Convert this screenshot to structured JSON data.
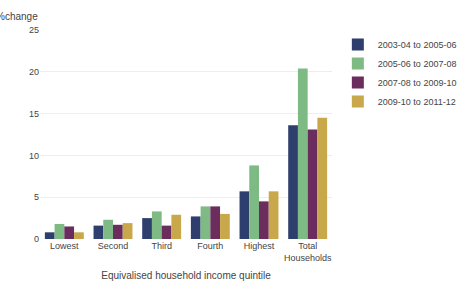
{
  "chart_data": {
    "type": "bar",
    "categories": [
      "Lowest",
      "Second",
      "Third",
      "Fourth",
      "Highest",
      "Total\nHouseholds"
    ],
    "series": [
      {
        "name": "2003-04 to 2005-06",
        "color": "#2e3f6e",
        "values": [
          0.8,
          1.6,
          2.5,
          2.7,
          5.7,
          13.6
        ]
      },
      {
        "name": "2005-06 to 2007-08",
        "color": "#7dba84",
        "values": [
          1.8,
          2.3,
          3.3,
          3.9,
          8.8,
          20.4
        ]
      },
      {
        "name": "2007-08 to 2009-10",
        "color": "#6b2d5e",
        "values": [
          1.5,
          1.7,
          1.6,
          3.9,
          4.5,
          13.1
        ]
      },
      {
        "name": "2009-10 to 2011-12",
        "color": "#c8a84b",
        "values": [
          0.8,
          1.9,
          2.9,
          3.0,
          5.7,
          14.5
        ]
      }
    ],
    "ylabel": "%change",
    "xlabel": "Equivalised household income quintile",
    "ylim": [
      0,
      25
    ],
    "yticks": [
      0,
      5,
      10,
      15,
      20,
      25
    ],
    "grid": true,
    "legend": "upper right"
  }
}
